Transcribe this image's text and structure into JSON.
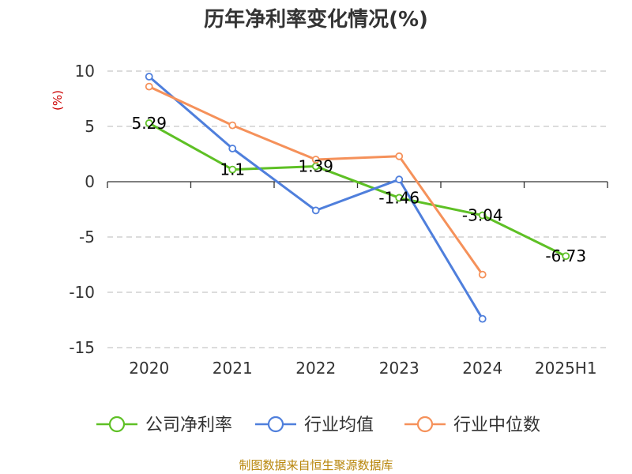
{
  "chart_data": {
    "type": "line",
    "title": "历年净利率变化情况(%)",
    "ylabel": "(%)",
    "xlabel": "",
    "categories": [
      "2020",
      "2021",
      "2022",
      "2023",
      "2024",
      "2025H1"
    ],
    "ylim": [
      -15,
      10
    ],
    "yticks": [
      10,
      5,
      0,
      -5,
      -10,
      -15
    ],
    "grid": true,
    "legend_position": "bottom",
    "series": [
      {
        "name": "公司净利率",
        "color": "#5ec025",
        "values": [
          5.29,
          1.1,
          1.39,
          -1.46,
          -3.04,
          -6.73
        ],
        "labels": [
          "5.29",
          "1.1",
          "1.39",
          "-1.46",
          "-3.04",
          "-6.73"
        ]
      },
      {
        "name": "行业均值",
        "color": "#4f7fdc",
        "values": [
          9.5,
          3.0,
          -2.6,
          0.2,
          -12.4,
          null
        ]
      },
      {
        "name": "行业中位数",
        "color": "#f5915a",
        "values": [
          8.6,
          5.1,
          2.0,
          2.3,
          -8.4,
          null
        ]
      }
    ]
  },
  "source": "制图数据来自恒生聚源数据库"
}
